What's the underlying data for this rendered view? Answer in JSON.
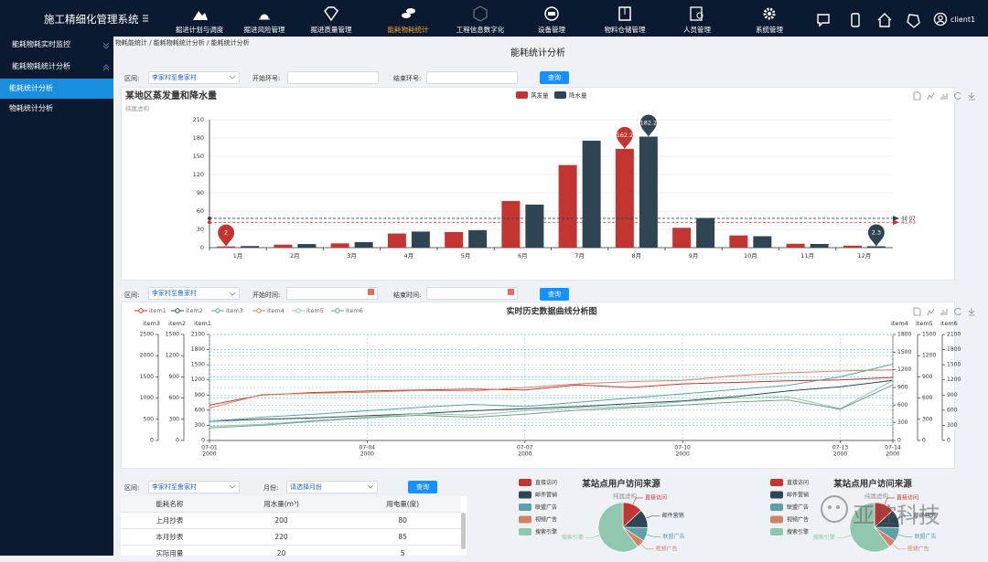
{
  "header": {
    "title": "施工精细化管理系统",
    "menu": [
      "掘进计划与调度",
      "掘进风险管理",
      "掘进质量管理",
      "能耗物耗统计",
      "工程信息数字化",
      "设备管理",
      "物料仓储管理",
      "人员管理",
      "系统管理"
    ],
    "active_menu": 3,
    "user": "client1"
  },
  "sidebar": {
    "items": [
      "能耗物耗实时监控",
      "能耗物耗统计分析",
      "能耗统计分析",
      "物耗统计分析"
    ],
    "active": 2
  },
  "breadcrumb": "物耗能统计 / 能耗物耗统计分析 / 能耗统计分析",
  "page_title": "能耗统计分析",
  "filter1": {
    "section_label": "区间:",
    "section_value": "李家村至鲁家村",
    "start_label": "开始环号:",
    "end_label": "结束环号:",
    "button": "查询"
  },
  "filter2": {
    "section_label": "区间:",
    "section_value": "李家村至鲁家村",
    "start_label": "开始时间:",
    "end_label": "结束时间:",
    "button": "查询"
  },
  "filter3": {
    "section_label": "区间:",
    "section_value": "李家村至鲁家村",
    "month_label": "月份:",
    "month_value": "请选择月份",
    "button": "查询"
  },
  "table": {
    "columns": [
      "能耗名称",
      "用水量(m³)",
      "用电量(度)"
    ],
    "rows": [
      [
        "上月抄表",
        200,
        80
      ],
      [
        "本月抄表",
        220,
        85
      ],
      [
        "实际用量",
        20,
        5
      ]
    ]
  },
  "watermark": "亚控科技",
  "chart_data": [
    {
      "type": "bar",
      "title": "某地区蒸发量和降水量",
      "subtitle": "纯属虚构",
      "categories": [
        "1月",
        "2月",
        "3月",
        "4月",
        "5月",
        "6月",
        "7月",
        "8月",
        "9月",
        "10月",
        "11月",
        "12月"
      ],
      "series": [
        {
          "name": "蒸发量",
          "color": "#c23531",
          "values": [
            2,
            4.9,
            7,
            23.2,
            25.6,
            76.7,
            135.6,
            162.2,
            32.6,
            20,
            6.4,
            3.3
          ],
          "average": 41.63
        },
        {
          "name": "降水量",
          "color": "#2f4554",
          "values": [
            2.6,
            5.9,
            9,
            26.4,
            28.7,
            70.7,
            175.6,
            182.2,
            48.7,
            18.8,
            6,
            2.3
          ],
          "average": 48.07
        }
      ],
      "ylim": [
        0,
        210
      ],
      "yticks": [
        0,
        30,
        60,
        90,
        120,
        150,
        180,
        210
      ],
      "grid": true
    },
    {
      "type": "line",
      "title": "实时历史数据曲线分析图",
      "x": [
        "2000-07-01",
        "2000-07-02",
        "2000-07-03",
        "2000-07-04",
        "2000-07-05",
        "2000-07-06",
        "2000-07-07",
        "2000-07-08",
        "2000-07-09",
        "2000-07-10",
        "2000-07-11",
        "2000-07-12",
        "2000-07-13",
        "2000-07-14"
      ],
      "xlim": [
        "2000-07-01",
        "2000-07-14"
      ],
      "xticks": [
        {
          "value": "2000-07-01",
          "label": [
            "07-01",
            "2000"
          ]
        },
        {
          "value": "2000-07-04",
          "label": [
            "07-04",
            "2000"
          ]
        },
        {
          "value": "2000-07-07",
          "label": [
            "07-07",
            "2000"
          ]
        },
        {
          "value": "2000-07-10",
          "label": [
            "07-10",
            "2000"
          ]
        },
        {
          "value": "2000-07-13",
          "label": [
            "07-13",
            "2000"
          ]
        },
        {
          "value": "2000-07-14",
          "label": [
            "07-14",
            "2000"
          ]
        }
      ],
      "y_axes": [
        {
          "name": "item3",
          "side": "left",
          "lim": [
            0,
            2500
          ],
          "ticks": [
            0,
            500,
            1000,
            1500,
            2000,
            2500
          ]
        },
        {
          "name": "item2",
          "side": "left",
          "lim": [
            0,
            1500
          ],
          "ticks": [
            0,
            300,
            600,
            900,
            1200,
            1500
          ]
        },
        {
          "name": "item1",
          "side": "left",
          "lim": [
            0,
            2100
          ],
          "ticks": [
            0,
            300,
            600,
            900,
            1200,
            1500,
            1800,
            2100
          ]
        },
        {
          "name": "item4",
          "side": "right",
          "lim": [
            0,
            1800
          ],
          "ticks": [
            0,
            300,
            600,
            900,
            1200,
            1500,
            1800
          ]
        },
        {
          "name": "item5",
          "side": "right",
          "lim": [
            0,
            1500
          ],
          "ticks": [
            0,
            300,
            600,
            900,
            1200,
            1500
          ]
        },
        {
          "name": "item6",
          "side": "right",
          "lim": [
            0,
            2100
          ],
          "ticks": [
            0,
            300,
            600,
            900,
            1200,
            1500,
            1800,
            2100
          ]
        }
      ],
      "grid": true,
      "series": [
        {
          "name": "item1",
          "color": "#c23531",
          "axis": 2,
          "values": [
            700,
            900,
            950,
            980,
            1000,
            1020,
            1000,
            1100,
            1050,
            1120,
            1150,
            1180,
            1200,
            1250
          ]
        },
        {
          "name": "item2",
          "color": "#2f4554",
          "axis": 1,
          "values": [
            270,
            300,
            320,
            350,
            380,
            420,
            450,
            480,
            520,
            560,
            620,
            700,
            760,
            850
          ]
        },
        {
          "name": "item3",
          "color": "#61a0a8",
          "axis": 0,
          "values": [
            450,
            550,
            620,
            700,
            780,
            850,
            800,
            900,
            1000,
            1100,
            1200,
            1300,
            1500,
            1800
          ]
        },
        {
          "name": "item4",
          "color": "#d48265",
          "axis": 3,
          "values": [
            550,
            780,
            800,
            820,
            850,
            840,
            900,
            960,
            1000,
            1020,
            1100,
            1150,
            1180,
            1200
          ]
        },
        {
          "name": "item5",
          "color": "#91c7ae",
          "axis": 4,
          "values": [
            200,
            230,
            280,
            330,
            380,
            360,
            420,
            460,
            480,
            550,
            600,
            620,
            450,
            850
          ]
        },
        {
          "name": "item6",
          "color": "#749f83",
          "axis": 5,
          "values": [
            250,
            300,
            380,
            450,
            500,
            460,
            520,
            600,
            650,
            700,
            760,
            800,
            620,
            1100
          ]
        }
      ]
    },
    {
      "type": "pie",
      "title": "某站点用户访问来源",
      "subtitle": "纯属虚构",
      "categories": [
        "直接访问",
        "邮件营销",
        "联盟广告",
        "视频广告",
        "搜索引擎"
      ],
      "values": [
        335,
        310,
        234,
        135,
        1548
      ],
      "colors": [
        "#c23531",
        "#2f4554",
        "#61a0a8",
        "#d48265",
        "#91c7ae"
      ]
    },
    {
      "type": "pie",
      "title": "某站点用户访问来源",
      "subtitle": "纯属虚构",
      "categories": [
        "直接访问",
        "邮件营销",
        "联盟广告",
        "视频广告",
        "搜索引擎"
      ],
      "values": [
        335,
        310,
        234,
        135,
        1548
      ],
      "colors": [
        "#c23531",
        "#2f4554",
        "#61a0a8",
        "#d48265",
        "#91c7ae"
      ]
    }
  ]
}
